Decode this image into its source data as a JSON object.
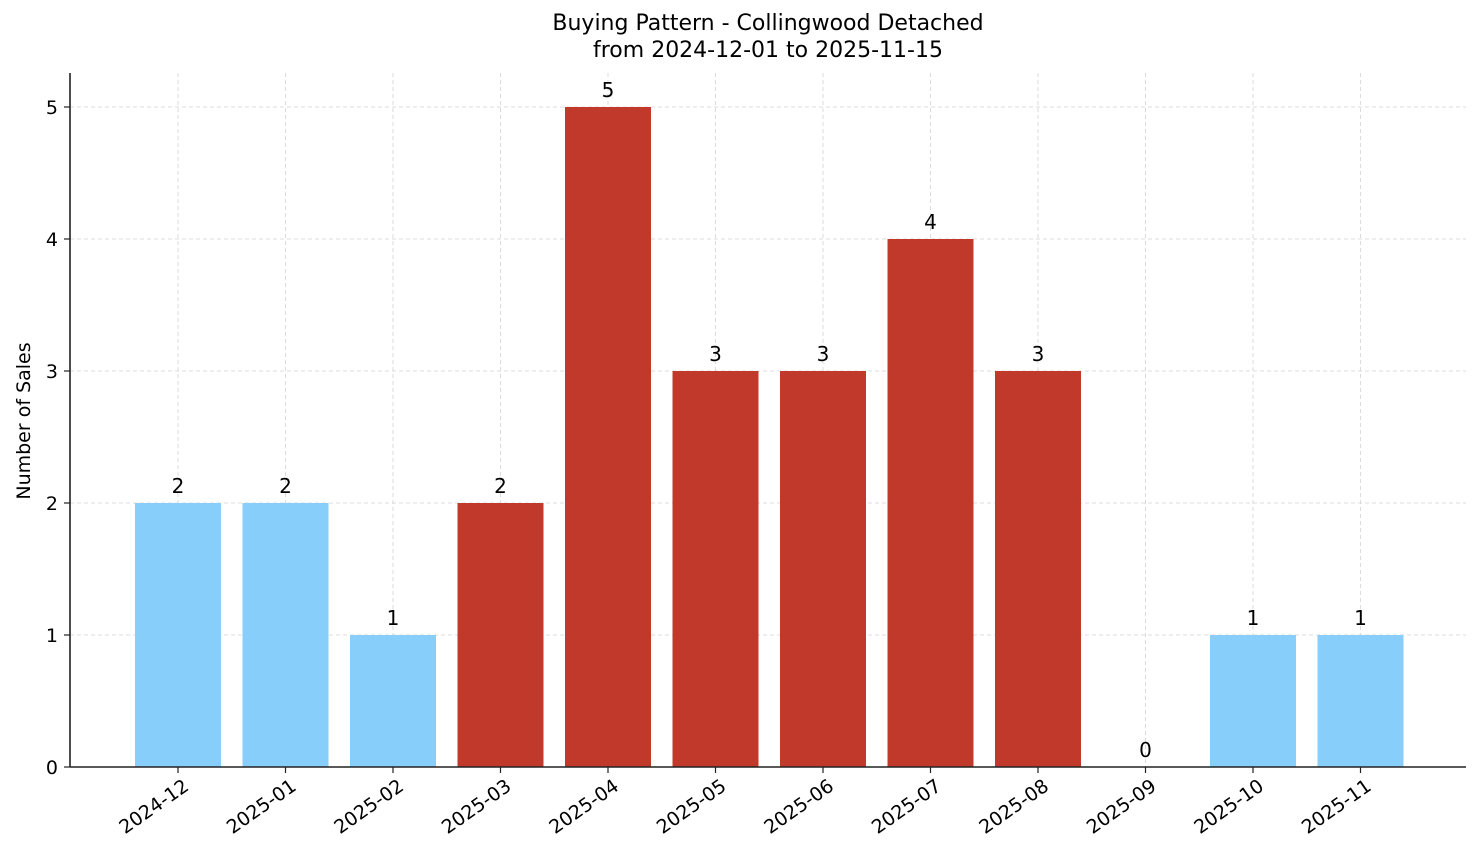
{
  "chart_data": {
    "type": "bar",
    "title": "Buying Pattern - Collingwood Detached",
    "subtitle": "from 2024-12-01 to 2025-11-15",
    "xlabel": "",
    "ylabel": "Number of Sales",
    "categories": [
      "2024-12",
      "2025-01",
      "2025-02",
      "2025-03",
      "2025-04",
      "2025-05",
      "2025-06",
      "2025-07",
      "2025-08",
      "2025-09",
      "2025-10",
      "2025-11"
    ],
    "values": [
      2,
      2,
      1,
      2,
      5,
      3,
      3,
      4,
      3,
      0,
      1,
      1
    ],
    "bar_colors": [
      "#87CEFA",
      "#87CEFA",
      "#87CEFA",
      "#C0392B",
      "#C0392B",
      "#C0392B",
      "#C0392B",
      "#C0392B",
      "#C0392B",
      "#C0392B",
      "#87CEFA",
      "#87CEFA"
    ],
    "data_labels": [
      "2",
      "2",
      "1",
      "2",
      "5",
      "3",
      "3",
      "4",
      "3",
      "0",
      "1",
      "1"
    ],
    "yticks": [
      0,
      1,
      2,
      3,
      4,
      5
    ],
    "ylim": [
      0,
      5.25
    ],
    "grid": true,
    "legend": null
  },
  "colors": {
    "off_season": "#87CEFA",
    "peak_season": "#C0392B",
    "grid": "#d3d3d3",
    "axis": "#222222"
  }
}
